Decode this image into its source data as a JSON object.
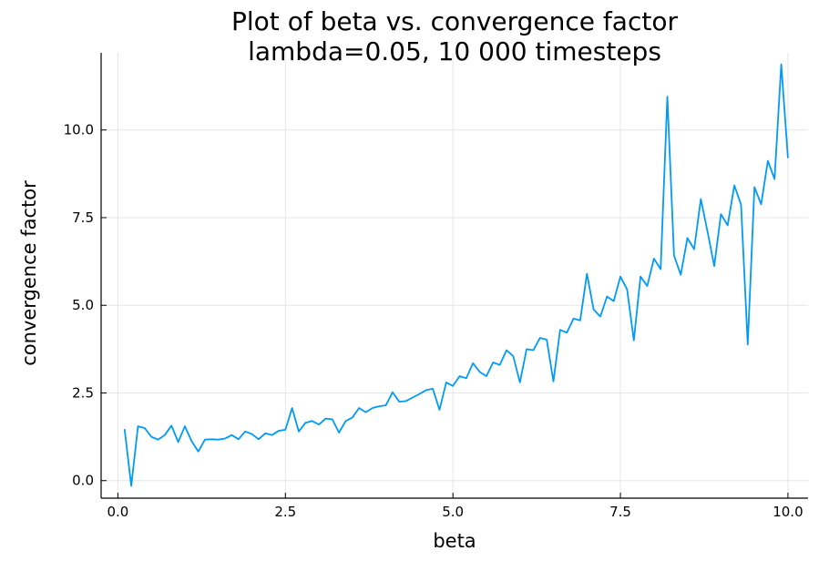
{
  "chart_data": {
    "type": "line",
    "title_line1": "Plot of beta vs. convergence factor",
    "title_line2": "lambda=0.05, 10 000 timesteps",
    "xlabel": "beta",
    "ylabel": "convergence factor",
    "xlim": [
      -0.25,
      10.3
    ],
    "ylim": [
      -0.5,
      12.2
    ],
    "x_ticks": [
      0.0,
      2.5,
      5.0,
      7.5,
      10.0
    ],
    "x_tick_labels": [
      "0.0",
      "2.5",
      "5.0",
      "7.5",
      "10.0"
    ],
    "y_ticks": [
      0.0,
      2.5,
      5.0,
      7.5,
      10.0
    ],
    "y_tick_labels": [
      "0.0",
      "2.5",
      "5.0",
      "7.5",
      "10.0"
    ],
    "grid": true,
    "line_color": "#009AFA",
    "series": [
      {
        "x": [
          0.1,
          0.2,
          0.3,
          0.4,
          0.5,
          0.6,
          0.7,
          0.8,
          0.9,
          1.0,
          1.1,
          1.2,
          1.3,
          1.4,
          1.5,
          1.6,
          1.7,
          1.8,
          1.9,
          2.0,
          2.1,
          2.2,
          2.3,
          2.4,
          2.5,
          2.6,
          2.7,
          2.8,
          2.9,
          3.0,
          3.1,
          3.2,
          3.3,
          3.4,
          3.5,
          3.6,
          3.7,
          3.8,
          3.9,
          4.0,
          4.1,
          4.2,
          4.3,
          4.4,
          4.5,
          4.6,
          4.7,
          4.8,
          4.9,
          5.0,
          5.1,
          5.2,
          5.3,
          5.4,
          5.5,
          5.6,
          5.7,
          5.8,
          5.9,
          6.0,
          6.1,
          6.2,
          6.3,
          6.4,
          6.5,
          6.6,
          6.7,
          6.8,
          6.9,
          7.0,
          7.1,
          7.2,
          7.3,
          7.4,
          7.5,
          7.6,
          7.7,
          7.8,
          7.9,
          8.0,
          8.1,
          8.2,
          8.3,
          8.4,
          8.5,
          8.6,
          8.7,
          8.8,
          8.9,
          9.0,
          9.1,
          9.2,
          9.3,
          9.4,
          9.5,
          9.6,
          9.7,
          9.8,
          9.9,
          10.0
        ],
        "y": [
          1.47,
          -0.15,
          1.55,
          1.5,
          1.25,
          1.17,
          1.3,
          1.57,
          1.1,
          1.55,
          1.13,
          0.83,
          1.17,
          1.18,
          1.17,
          1.2,
          1.3,
          1.18,
          1.4,
          1.33,
          1.18,
          1.35,
          1.3,
          1.42,
          1.45,
          2.07,
          1.4,
          1.65,
          1.7,
          1.6,
          1.77,
          1.75,
          1.37,
          1.7,
          1.8,
          2.07,
          1.95,
          2.07,
          2.12,
          2.15,
          2.52,
          2.25,
          2.27,
          2.37,
          2.47,
          2.58,
          2.62,
          2.02,
          2.8,
          2.7,
          2.98,
          2.92,
          3.35,
          3.1,
          2.98,
          3.37,
          3.3,
          3.72,
          3.55,
          2.8,
          3.75,
          3.72,
          4.07,
          4.02,
          2.83,
          4.3,
          4.22,
          4.62,
          4.57,
          5.9,
          4.88,
          4.68,
          5.25,
          5.12,
          5.82,
          5.45,
          4.0,
          5.82,
          5.55,
          6.33,
          6.03,
          10.95,
          6.42,
          5.87,
          6.92,
          6.6,
          8.03,
          7.1,
          6.12,
          7.6,
          7.28,
          8.42,
          7.87,
          3.88,
          8.37,
          7.88,
          9.12,
          8.6,
          11.87,
          9.2
        ]
      }
    ]
  }
}
